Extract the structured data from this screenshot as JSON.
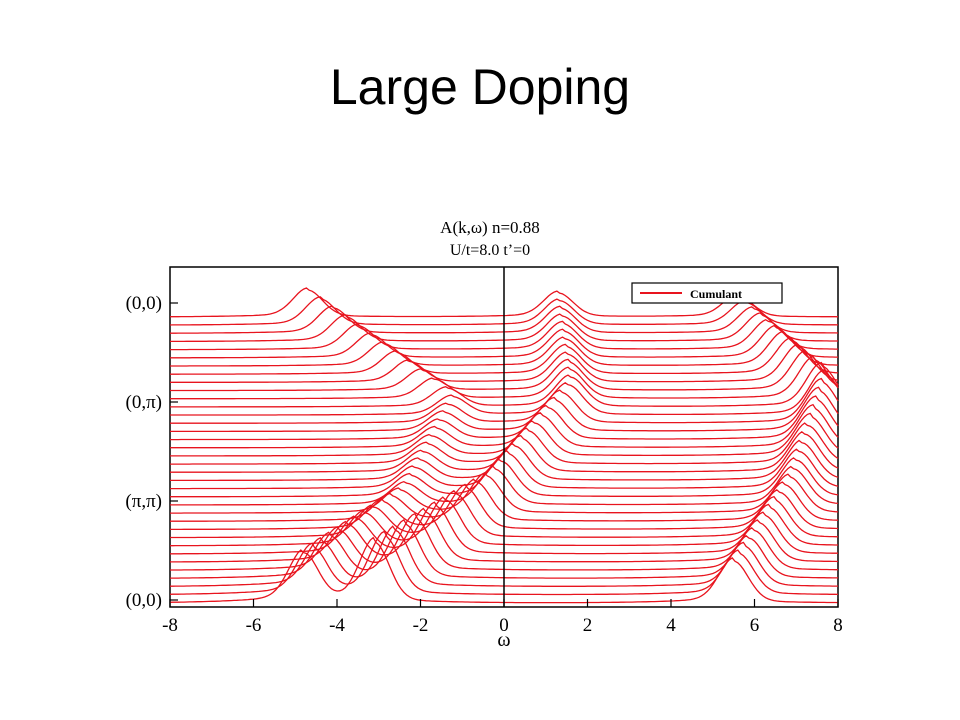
{
  "slide": {
    "title": "Large Doping"
  },
  "chart_data": {
    "type": "line",
    "title": "A(k,ω) n=0.88",
    "subtitle": "U/t=8.0 t’=0",
    "xlabel": "ω",
    "ylabel": "",
    "xlim": [
      -8,
      8
    ],
    "x_ticks": [
      "-8",
      "-6",
      "-4",
      "-2",
      "0",
      "2",
      "4",
      "6",
      "8"
    ],
    "y_tick_labels": [
      "(0,0)",
      "(0,π)",
      "(π,π)",
      "(0,0)"
    ],
    "legend": {
      "entries": [
        "Cumulant"
      ],
      "position": "top-right"
    },
    "grid": false,
    "series_color": "#e8141e",
    "k_path": [
      "(0,0)",
      "(0,π)",
      "(π,π)",
      "(0,0)"
    ],
    "curve_count": 36,
    "peak_tracks": [
      {
        "k": [
          0.0,
          0.33,
          0.67,
          1.0
        ],
        "omega": [
          -3.1,
          -0.3,
          1.6,
          1.3
        ],
        "height": [
          1.0,
          0.6,
          0.5,
          0.4
        ]
      },
      {
        "k": [
          0.0,
          0.33,
          0.67,
          1.0
        ],
        "omega": [
          -4.8,
          -2.4,
          -1.2,
          -4.7
        ],
        "height": [
          0.8,
          0.35,
          0.3,
          0.45
        ]
      },
      {
        "k": [
          0.0,
          0.33,
          0.67,
          1.0
        ],
        "omega": [
          5.5,
          6.9,
          7.7,
          5.6
        ],
        "height": [
          0.7,
          0.6,
          0.7,
          0.35
        ]
      }
    ],
    "zero_line_x": 0
  }
}
